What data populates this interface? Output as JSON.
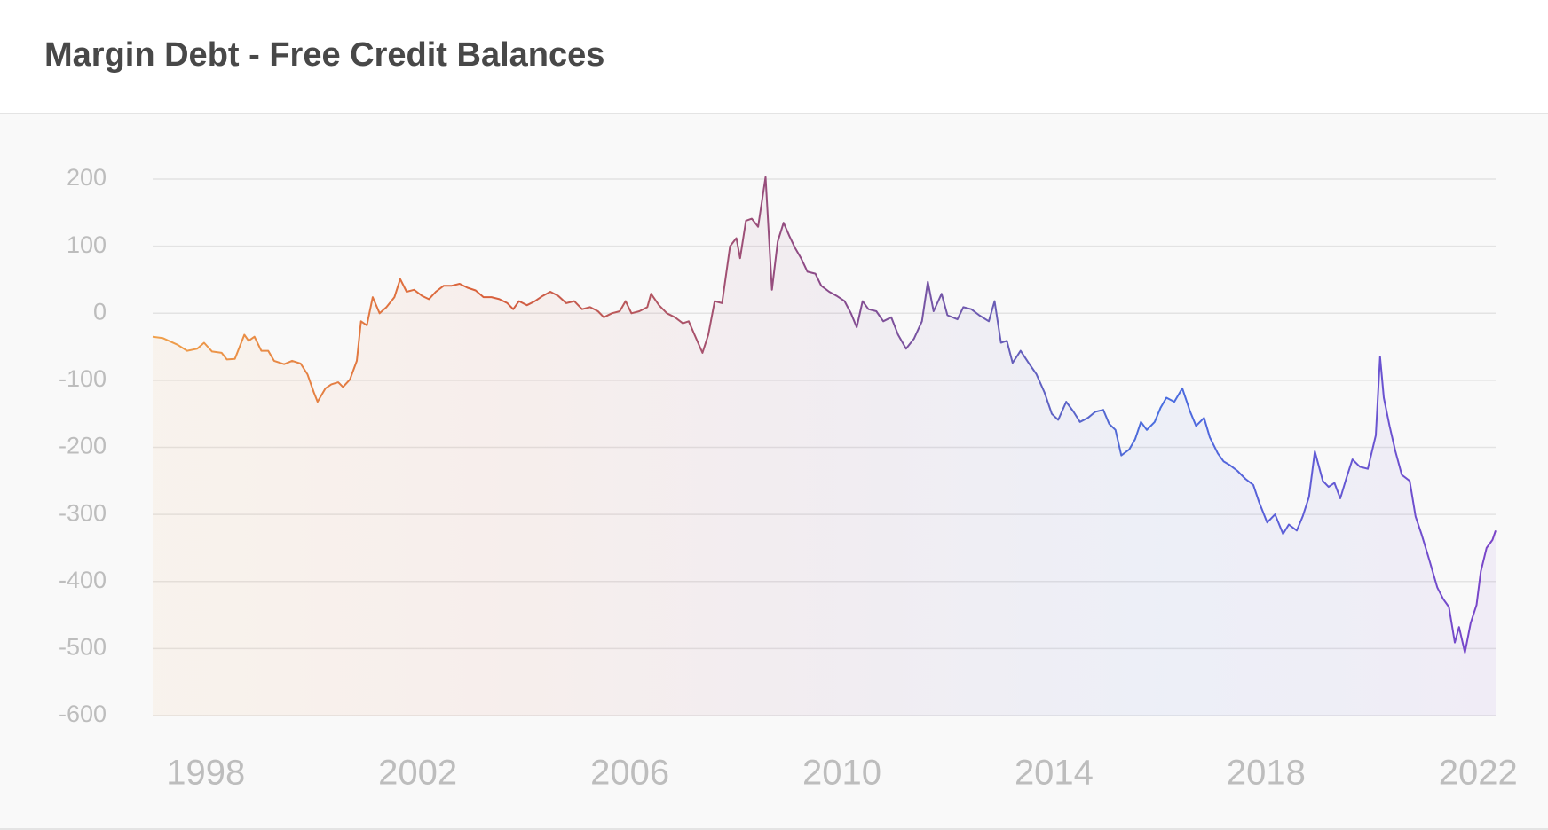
{
  "chart_data": {
    "type": "line",
    "title": "Margin Debt - Free Credit Balances",
    "x": [
      1997.0,
      1997.19,
      1997.47,
      1997.65,
      1997.84,
      1997.97,
      1998.12,
      1998.3,
      1998.4,
      1998.55,
      1998.73,
      1998.81,
      1998.92,
      1999.05,
      1999.18,
      1999.29,
      1999.48,
      1999.63,
      1999.79,
      1999.92,
      2000.04,
      2000.11,
      2000.26,
      2000.37,
      2000.5,
      2000.59,
      2000.72,
      2000.85,
      2000.93,
      2001.04,
      2001.15,
      2001.28,
      2001.41,
      2001.56,
      2001.67,
      2001.79,
      2001.93,
      2002.08,
      2002.21,
      2002.34,
      2002.49,
      2002.64,
      2002.79,
      2002.94,
      2003.09,
      2003.24,
      2003.39,
      2003.54,
      2003.69,
      2003.8,
      2003.91,
      2004.06,
      2004.21,
      2004.36,
      2004.5,
      2004.65,
      2004.8,
      2004.95,
      2005.1,
      2005.25,
      2005.4,
      2005.51,
      2005.66,
      2005.81,
      2005.92,
      2006.03,
      2006.18,
      2006.33,
      2006.4,
      2006.55,
      2006.7,
      2006.85,
      2007.0,
      2007.11,
      2007.22,
      2007.37,
      2007.48,
      2007.6,
      2007.74,
      2007.89,
      2008.01,
      2008.08,
      2008.19,
      2008.3,
      2008.42,
      2008.56,
      2008.68,
      2008.79,
      2008.9,
      2009.01,
      2009.12,
      2009.23,
      2009.35,
      2009.5,
      2009.61,
      2009.76,
      2009.9,
      2010.05,
      2010.17,
      2010.28,
      2010.39,
      2010.5,
      2010.65,
      2010.78,
      2010.93,
      2011.06,
      2011.21,
      2011.36,
      2011.51,
      2011.62,
      2011.73,
      2011.88,
      2011.99,
      2012.18,
      2012.29,
      2012.44,
      2012.59,
      2012.77,
      2012.88,
      2013.0,
      2013.11,
      2013.22,
      2013.37,
      2013.52,
      2013.67,
      2013.82,
      2013.96,
      2014.08,
      2014.23,
      2014.37,
      2014.49,
      2014.64,
      2014.78,
      2014.93,
      2015.04,
      2015.16,
      2015.27,
      2015.42,
      2015.53,
      2015.64,
      2015.75,
      2015.9,
      2016.01,
      2016.12,
      2016.27,
      2016.42,
      2016.57,
      2016.68,
      2016.83,
      2016.94,
      2017.09,
      2017.2,
      2017.31,
      2017.46,
      2017.61,
      2017.76,
      2017.87,
      2018.02,
      2018.17,
      2018.32,
      2018.43,
      2018.58,
      2018.69,
      2018.81,
      2018.92,
      2019.07,
      2019.18,
      2019.29,
      2019.4,
      2019.51,
      2019.63,
      2019.77,
      2019.92,
      2020.07,
      2020.15,
      2020.22,
      2020.33,
      2020.44,
      2020.56,
      2020.71,
      2020.82,
      2020.93,
      2021.08,
      2021.23,
      2021.34,
      2021.45,
      2021.56,
      2021.64,
      2021.75,
      2021.86,
      2021.97,
      2022.05,
      2022.16,
      2022.27,
      2022.33
    ],
    "values": [
      -35,
      -37,
      -47,
      -56,
      -53,
      -44,
      -57,
      -59,
      -69,
      -68,
      -32,
      -41,
      -35,
      -56,
      -56,
      -71,
      -76,
      -71,
      -75,
      -91,
      -118,
      -132,
      -112,
      -106,
      -103,
      -110,
      -99,
      -71,
      -12,
      -18,
      24,
      0,
      9,
      24,
      51,
      32,
      35,
      26,
      21,
      32,
      41,
      41,
      44,
      38,
      34,
      24,
      24,
      21,
      15,
      6,
      18,
      12,
      18,
      26,
      32,
      26,
      15,
      18,
      6,
      9,
      3,
      -6,
      0,
      3,
      18,
      0,
      3,
      9,
      29,
      12,
      0,
      -6,
      -15,
      -12,
      -32,
      -59,
      -32,
      18,
      15,
      100,
      112,
      82,
      138,
      141,
      129,
      203,
      35,
      107,
      135,
      115,
      97,
      82,
      62,
      59,
      41,
      32,
      26,
      18,
      0,
      -21,
      18,
      6,
      3,
      -12,
      -6,
      -32,
      -53,
      -38,
      -12,
      47,
      3,
      29,
      -3,
      -9,
      9,
      6,
      -3,
      -12,
      18,
      -44,
      -41,
      -74,
      -56,
      -74,
      -91,
      -118,
      -150,
      -159,
      -132,
      -147,
      -162,
      -156,
      -147,
      -144,
      -165,
      -174,
      -212,
      -203,
      -188,
      -162,
      -174,
      -162,
      -141,
      -126,
      -132,
      -112,
      -147,
      -168,
      -156,
      -185,
      -209,
      -221,
      -226,
      -235,
      -247,
      -256,
      -282,
      -312,
      -300,
      -329,
      -315,
      -324,
      -303,
      -274,
      -206,
      -250,
      -259,
      -253,
      -276,
      -247,
      -218,
      -229,
      -232,
      -182,
      -65,
      -126,
      -168,
      -206,
      -241,
      -250,
      -303,
      -329,
      -368,
      -409,
      -426,
      -438,
      -491,
      -468,
      -506,
      -462,
      -435,
      -385,
      -350,
      -338,
      -324
    ],
    "colors": [
      "#f0a04b",
      "#d9603b",
      "#8a4a8a",
      "#4a6ee0",
      "#7b45c8"
    ],
    "xlim": [
      1997,
      2022.33
    ],
    "xticks": [
      1998,
      2002,
      2006,
      2010,
      2014,
      2018,
      2022
    ],
    "ylim": [
      -600,
      200
    ],
    "yticks": [
      -600,
      -500,
      -400,
      -300,
      -200,
      -100,
      0,
      100,
      200
    ],
    "grid": true
  }
}
